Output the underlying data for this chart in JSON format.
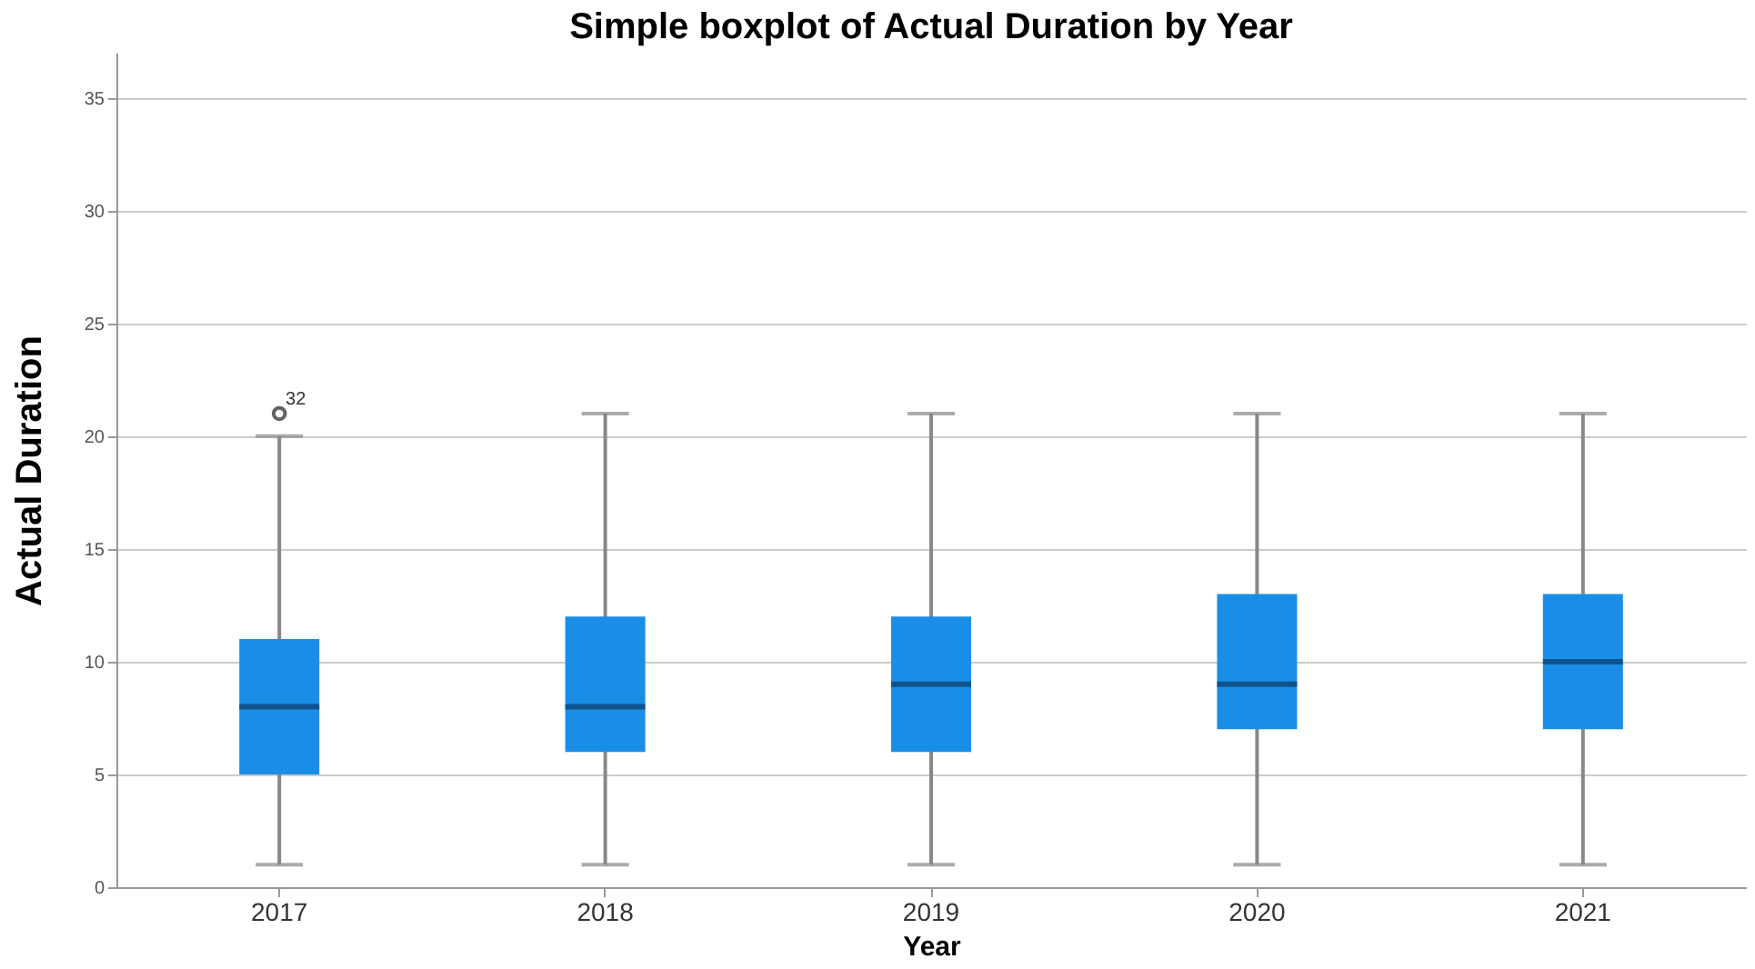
{
  "chart_data": {
    "type": "box",
    "title": "Simple boxplot of Actual Duration by Year",
    "xlabel": "Year",
    "ylabel": "Actual Duration",
    "categories": [
      "2017",
      "2018",
      "2019",
      "2020",
      "2021"
    ],
    "series": [
      {
        "color": "#1a8ee6",
        "boxes": [
          {
            "low": 1,
            "q1": 5,
            "median": 8,
            "q3": 11,
            "high": 20,
            "outliers": [
              21
            ]
          },
          {
            "low": 1,
            "q1": 6,
            "median": 8,
            "q3": 12,
            "high": 21
          },
          {
            "low": 1,
            "q1": 6,
            "median": 9,
            "q3": 12,
            "high": 21
          },
          {
            "low": 1,
            "q1": 7,
            "median": 9,
            "q3": 13,
            "high": 21
          },
          {
            "low": 1,
            "q1": 7,
            "median": 10,
            "q3": 13,
            "high": 21
          }
        ]
      }
    ],
    "annotations": [
      "32"
    ],
    "ylim": [
      0,
      37
    ],
    "yticks": [
      0,
      5,
      10,
      15,
      20,
      25,
      30,
      35
    ],
    "grid": "y"
  }
}
